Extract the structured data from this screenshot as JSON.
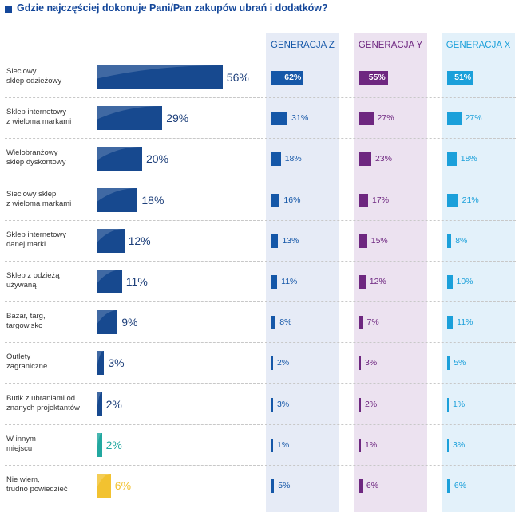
{
  "title": "Gdzie najczęściej dokonuje Pani/Pan zakupów ubrań i dodatków?",
  "colors": {
    "title": "#14479a",
    "main_bar": "#17498f",
    "main_bar_other": "#22a8a0",
    "main_bar_dontknow": "#f2c230",
    "gen_z": "#1557a8",
    "gen_y": "#6e2780",
    "gen_x": "#1ba0da",
    "panel_z": "#e6ebf6",
    "panel_y": "#ece2f0",
    "panel_x": "#e3f1fa"
  },
  "chart_data": {
    "type": "bar",
    "orientation": "horizontal",
    "title": "Gdzie najczęściej dokonuje Pani/Pan zakupów ubrań i dodatków?",
    "unit": "%",
    "categories": [
      [
        "Sieciowy",
        "sklep odzieżowy"
      ],
      [
        "Sklep internetowy",
        "z wieloma markami"
      ],
      [
        "Wielobranżowy",
        "sklep dyskontowy"
      ],
      [
        "Sieciowy sklep",
        "z wieloma markami"
      ],
      [
        "Sklep internetowy",
        "danej marki"
      ],
      [
        "Sklep z odzieżą",
        "używaną"
      ],
      [
        "Bazar, targ,",
        "targowisko"
      ],
      [
        "Outlety",
        "zagraniczne"
      ],
      [
        "Butik z ubraniami od",
        "znanych projektantów"
      ],
      [
        "W innym",
        "miejscu"
      ],
      [
        "Nie wiem,",
        "trudno powiedzieć"
      ]
    ],
    "values": [
      56,
      29,
      20,
      18,
      12,
      11,
      9,
      3,
      2,
      2,
      6
    ],
    "series": [
      {
        "name": "GENERACJA Z",
        "values": [
          62,
          31,
          18,
          16,
          13,
          11,
          8,
          2,
          3,
          1,
          5
        ]
      },
      {
        "name": "GENERACJA Y",
        "values": [
          55,
          27,
          23,
          17,
          15,
          12,
          7,
          3,
          2,
          1,
          6
        ]
      },
      {
        "name": "GENERACJA X",
        "values": [
          51,
          27,
          18,
          21,
          8,
          10,
          11,
          5,
          1,
          3,
          6
        ]
      }
    ],
    "xlim": [
      0,
      100
    ],
    "grid": false,
    "legend": "top"
  }
}
